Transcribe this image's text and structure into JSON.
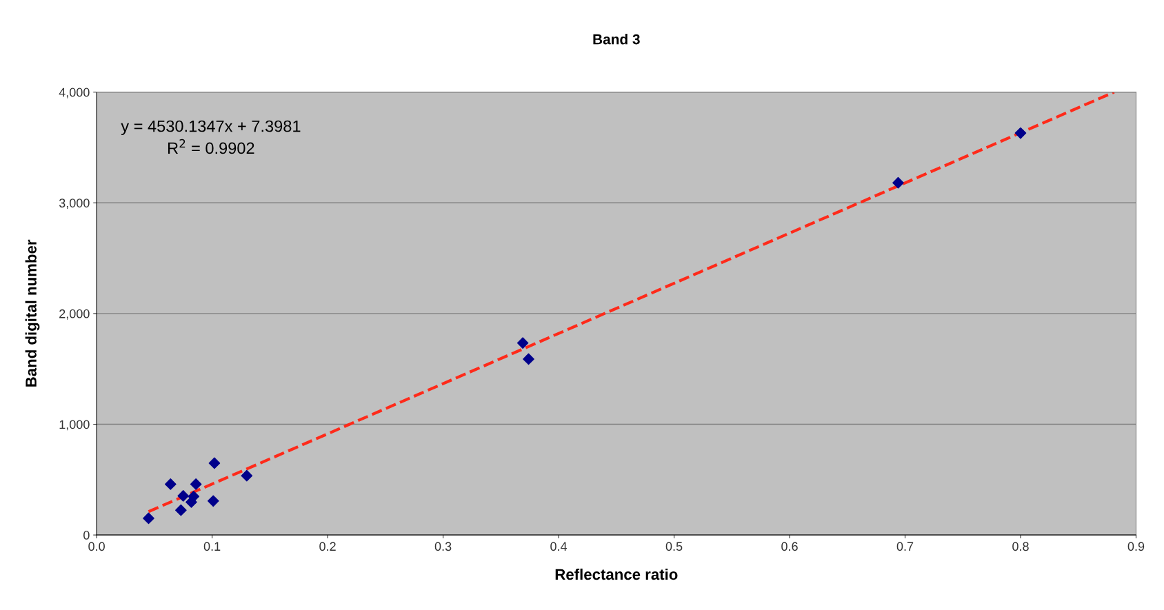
{
  "chart_data": {
    "type": "scatter",
    "title": "Band 3",
    "xlabel": "Reflectance ratio",
    "ylabel": "Band digital number",
    "annotations": [
      "y = 4530.1347x + 7.3981",
      "R$^{2}$ = 0.9902"
    ],
    "series": [
      {
        "color": "#00008b",
        "marker": "diamond",
        "x": [
          0.045,
          0.064,
          0.073,
          0.075,
          0.082,
          0.084,
          0.086,
          0.101,
          0.102,
          0.13,
          0.369,
          0.374,
          0.694,
          0.8
        ],
        "values": [
          151,
          459,
          224,
          353,
          297,
          348,
          459,
          307,
          649,
          535,
          1734,
          1589,
          3181,
          3630
        ]
      },
      {
        "type": "line",
        "color": "#ff2a1a",
        "line_style": "dashed",
        "marker": "none",
        "x": [
          0.045,
          0.881
        ],
        "values": [
          211,
          4000
        ]
      }
    ],
    "xlim": [
      0,
      0.9
    ],
    "xticks": [
      {
        "value": 0,
        "label": "0.0"
      },
      0.1,
      0.2,
      0.3,
      0.4,
      0.5,
      0.6,
      0.7,
      0.8,
      0.9
    ],
    "ylim": [
      0,
      4000
    ],
    "yticks": [
      0,
      {
        "value": 1000,
        "label": "1,000"
      },
      {
        "value": 2000,
        "label": "2,000"
      },
      {
        "value": 3000,
        "label": "3,000"
      },
      {
        "value": 4000,
        "label": "4,000"
      }
    ],
    "grid": "y"
  }
}
